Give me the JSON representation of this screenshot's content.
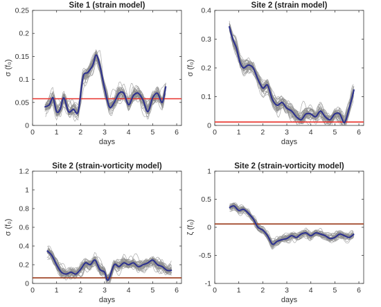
{
  "chart_data": [
    {
      "type": "line",
      "title": "Site 1 (strain model)",
      "xlabel": "days",
      "ylabel": "σ (f₀)",
      "xlim": [
        0,
        6.2
      ],
      "ylim": [
        0,
        0.25
      ],
      "xticks": [
        0,
        1,
        2,
        3,
        4,
        5,
        6
      ],
      "yticks": [
        0,
        0.05,
        0.1,
        0.15,
        0.2,
        0.25
      ],
      "ytick_labels": [
        "0",
        "0.05",
        "0.1",
        "0.15",
        "0.2",
        "0.25"
      ],
      "reference_line": 0.058,
      "ensemble_count": 40,
      "ensemble_spread": 0.022,
      "mean_series": {
        "x": [
          0.5,
          0.7,
          0.85,
          1.0,
          1.15,
          1.3,
          1.5,
          1.7,
          1.9,
          2.1,
          2.3,
          2.5,
          2.65,
          2.8,
          3.0,
          3.2,
          3.4,
          3.6,
          3.8,
          4.0,
          4.2,
          4.4,
          4.6,
          4.8,
          5.0,
          5.2,
          5.4,
          5.55
        ],
        "y": [
          0.04,
          0.045,
          0.06,
          0.03,
          0.035,
          0.06,
          0.03,
          0.035,
          0.03,
          0.105,
          0.115,
          0.13,
          0.153,
          0.13,
          0.08,
          0.04,
          0.05,
          0.07,
          0.07,
          0.045,
          0.065,
          0.07,
          0.055,
          0.03,
          0.06,
          0.07,
          0.05,
          0.085
        ]
      }
    },
    {
      "type": "line",
      "title": "Site 2 (strain model)",
      "xlabel": "days",
      "ylabel": "σ (f₀)",
      "xlim": [
        0,
        6.2
      ],
      "ylim": [
        0,
        0.4
      ],
      "xticks": [
        0,
        1,
        2,
        3,
        4,
        5,
        6
      ],
      "yticks": [
        0,
        0.1,
        0.2,
        0.3,
        0.4
      ],
      "ytick_labels": [
        "0",
        "0.1",
        "0.2",
        "0.3",
        "0.4"
      ],
      "reference_line": 0.012,
      "ensemble_count": 40,
      "ensemble_spread": 0.035,
      "mean_series": {
        "x": [
          0.6,
          0.75,
          0.9,
          1.05,
          1.2,
          1.4,
          1.6,
          1.8,
          2.0,
          2.2,
          2.4,
          2.6,
          2.8,
          3.0,
          3.2,
          3.4,
          3.6,
          3.8,
          4.0,
          4.2,
          4.4,
          4.6,
          4.8,
          5.0,
          5.2,
          5.4,
          5.6,
          5.8
        ],
        "y": [
          0.345,
          0.3,
          0.27,
          0.22,
          0.2,
          0.21,
          0.2,
          0.16,
          0.13,
          0.14,
          0.09,
          0.07,
          0.08,
          0.06,
          0.05,
          0.03,
          0.02,
          0.04,
          0.04,
          0.03,
          0.05,
          0.03,
          0.02,
          0.04,
          0.04,
          0.01,
          0.06,
          0.125
        ]
      }
    },
    {
      "type": "line",
      "title": "Site 2 (strain-vorticity model)",
      "xlabel": "days",
      "ylabel": "σ (f₀)",
      "xlim": [
        0,
        6.2
      ],
      "ylim": [
        0,
        1.2
      ],
      "xticks": [
        0,
        1,
        2,
        3,
        4,
        5,
        6
      ],
      "yticks": [
        0,
        0.2,
        0.4,
        0.6,
        0.8,
        1.0,
        1.2
      ],
      "ytick_labels": [
        "0",
        "0.2",
        "0.4",
        "0.6",
        "0.8",
        "1",
        "1.2"
      ],
      "reference_line": 0.06,
      "ensemble_count": 40,
      "ensemble_spread": 0.09,
      "mean_series": {
        "x": [
          0.6,
          0.8,
          1.0,
          1.2,
          1.4,
          1.6,
          1.8,
          2.0,
          2.2,
          2.4,
          2.6,
          2.8,
          3.0,
          3.1,
          3.2,
          3.4,
          3.6,
          3.8,
          4.0,
          4.2,
          4.4,
          4.6,
          4.8,
          5.0,
          5.2,
          5.4,
          5.6,
          5.8
        ],
        "y": [
          0.35,
          0.3,
          0.2,
          0.12,
          0.1,
          0.12,
          0.1,
          0.15,
          0.22,
          0.2,
          0.25,
          0.15,
          0.12,
          0.04,
          0.06,
          0.2,
          0.18,
          0.22,
          0.2,
          0.22,
          0.18,
          0.2,
          0.22,
          0.25,
          0.2,
          0.18,
          0.14,
          0.14
        ]
      }
    },
    {
      "type": "line",
      "title": "Site 2 (strain-vorticity model)",
      "xlabel": "days",
      "ylabel": "ζ (f₀)",
      "xlim": [
        0,
        6.2
      ],
      "ylim": [
        -1,
        1
      ],
      "xticks": [
        0,
        1,
        2,
        3,
        4,
        5,
        6
      ],
      "yticks": [
        -1,
        -0.5,
        0,
        0.5,
        1
      ],
      "ytick_labels": [
        "-1",
        "-0.5",
        "0",
        "0.5",
        "1"
      ],
      "reference_line": 0.06,
      "ensemble_count": 40,
      "ensemble_spread": 0.1,
      "mean_series": {
        "x": [
          0.6,
          0.8,
          1.0,
          1.2,
          1.4,
          1.6,
          1.8,
          2.0,
          2.2,
          2.4,
          2.6,
          2.8,
          3.0,
          3.2,
          3.4,
          3.6,
          3.8,
          4.0,
          4.2,
          4.4,
          4.6,
          4.8,
          5.0,
          5.2,
          5.4,
          5.6,
          5.8
        ],
        "y": [
          0.35,
          0.38,
          0.3,
          0.32,
          0.25,
          0.15,
          0.0,
          -0.05,
          -0.15,
          -0.3,
          -0.25,
          -0.22,
          -0.2,
          -0.15,
          -0.18,
          -0.12,
          -0.1,
          -0.15,
          -0.1,
          -0.12,
          -0.15,
          -0.2,
          -0.18,
          -0.12,
          -0.15,
          -0.18,
          -0.12
        ]
      }
    }
  ],
  "colors": {
    "ensemble": "#8c8c8c",
    "mean": "#2b2f8f",
    "reference": [
      "#e8302a",
      "#e8302a",
      "#9a3a1a",
      "#9a3a1a"
    ],
    "axis": "#333333"
  }
}
